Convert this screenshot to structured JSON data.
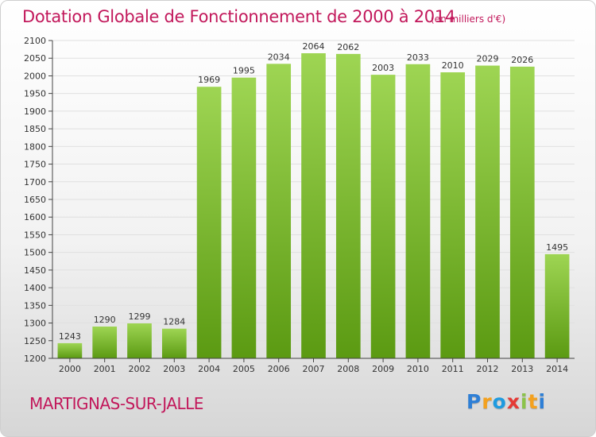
{
  "title": "Dotation Globale de Fonctionnement de 2000 à 2014",
  "subtitle": "(en milliers d'€)",
  "commune": "MARTIGNAS-SUR-JALLE",
  "logo": {
    "letters": [
      "P",
      "r",
      "o",
      "x",
      "i",
      "t",
      "i"
    ],
    "colors": [
      "#2e7fd6",
      "#f4a11e",
      "#1e9be0",
      "#e53935",
      "#8bc34a",
      "#f4a11e",
      "#2e7fd6"
    ]
  },
  "colors": {
    "bar_top": "#9ed553",
    "bar_bottom": "#5b9a12",
    "title": "#c2185b",
    "grid": "#e0e0e0"
  },
  "chart_data": {
    "type": "bar",
    "categories": [
      "2000",
      "2001",
      "2002",
      "2003",
      "2004",
      "2005",
      "2006",
      "2007",
      "2008",
      "2009",
      "2010",
      "2011",
      "2012",
      "2013",
      "2014"
    ],
    "values": [
      1243,
      1290,
      1299,
      1284,
      1969,
      1995,
      2034,
      2064,
      2062,
      2003,
      2033,
      2010,
      2029,
      2026,
      1495
    ],
    "ylim": [
      1200,
      2100
    ],
    "yticks": [
      1200,
      1250,
      1300,
      1350,
      1400,
      1450,
      1500,
      1550,
      1600,
      1650,
      1700,
      1750,
      1800,
      1850,
      1900,
      1950,
      2000,
      2050,
      2100
    ],
    "grid": true,
    "xlabel": "",
    "ylabel": ""
  }
}
